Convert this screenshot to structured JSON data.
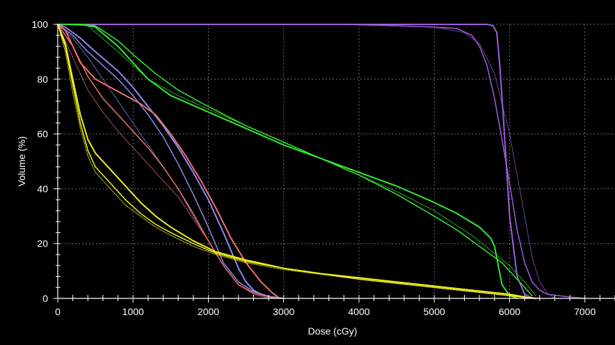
{
  "chart_data": {
    "type": "line",
    "title": "",
    "xlabel": "Dose (cGy)",
    "ylabel": "Volume (%)",
    "xlim": [
      0,
      7400
    ],
    "ylim": [
      0,
      100
    ],
    "xticks": [
      0,
      1000,
      2000,
      3000,
      4000,
      5000,
      6000,
      7000
    ],
    "yticks": [
      0,
      20,
      40,
      60,
      80,
      100
    ],
    "grid": true,
    "legend": "none",
    "background_color": "#000000",
    "series": [
      {
        "color": "#a05ee0",
        "style": "solid",
        "x": [
          0,
          3000,
          5700,
          5780,
          5830,
          5870,
          5920,
          6000,
          6100,
          6200,
          6300,
          6400
        ],
        "y": [
          100,
          100,
          100,
          99.5,
          97,
          85,
          65,
          30,
          8,
          1.5,
          0.2,
          0
        ]
      },
      {
        "color": "#a05ee0",
        "style": "dashed",
        "x": [
          0,
          3800,
          4500,
          5000,
          5300,
          5500,
          5600,
          5700,
          5800,
          5900,
          6000,
          6100,
          6200,
          6300,
          6400,
          6500,
          6800,
          7000
        ],
        "y": [
          100,
          100,
          99.5,
          99,
          98.5,
          96,
          92,
          85,
          73,
          58,
          42,
          25,
          13,
          6,
          3,
          1.5,
          0.5,
          0
        ]
      },
      {
        "color": "#a05ee0",
        "style": "dotted",
        "x": [
          0,
          4000,
          5000,
          5400,
          5600,
          5800,
          6000,
          6200,
          6300,
          6400,
          6500,
          6600
        ],
        "y": [
          100,
          100,
          99,
          97,
          93,
          82,
          60,
          30,
          15,
          6,
          2,
          0
        ]
      },
      {
        "color": "#33e633",
        "style": "solid",
        "x": [
          0,
          300,
          500,
          800,
          1000,
          1200,
          1500,
          2000,
          2500,
          3000,
          3500,
          4000,
          4500,
          5000,
          5300,
          5600,
          5750,
          5800,
          5850,
          5900,
          6000,
          6100
        ],
        "y": [
          100,
          100,
          99,
          92,
          86,
          80,
          74,
          68,
          62,
          56,
          51,
          46,
          41,
          35,
          31,
          26,
          22,
          19,
          12,
          5,
          1,
          0
        ]
      },
      {
        "color": "#33e633",
        "style": "dashed",
        "x": [
          0,
          300,
          500,
          800,
          1000,
          1300,
          1600,
          2000,
          2500,
          3000,
          3500,
          4000,
          4500,
          5000,
          5300,
          5500,
          5700,
          5900,
          6100,
          6300
        ],
        "y": [
          100,
          100,
          99.5,
          94,
          89,
          82,
          76,
          70,
          63,
          57,
          51,
          45,
          38,
          30,
          25,
          21,
          17,
          13,
          7,
          1
        ]
      },
      {
        "color": "#33e633",
        "style": "dotted",
        "x": [
          0,
          400,
          800,
          1200,
          1600,
          2000,
          3000,
          4000,
          4500,
          5000,
          5500,
          6000,
          6200,
          6350
        ],
        "y": [
          100,
          99.5,
          90,
          80,
          74,
          69,
          57,
          45,
          39,
          32,
          23,
          12,
          6,
          1
        ]
      },
      {
        "color": "#8b8bf0",
        "style": "solid",
        "x": [
          0,
          100,
          300,
          500,
          800,
          1000,
          1200,
          1400,
          1600,
          1800,
          2000,
          2200,
          2400,
          2500,
          2600,
          2700,
          2800,
          3000
        ],
        "y": [
          100,
          99,
          95,
          90,
          83,
          77,
          70,
          63,
          55,
          46,
          36,
          24,
          11,
          6,
          3,
          1.5,
          0.6,
          0
        ]
      },
      {
        "color": "#8b8bf0",
        "style": "dashed",
        "x": [
          0,
          200,
          400,
          600,
          800,
          1000,
          1200,
          1400,
          1600,
          1800,
          2000,
          2200,
          2400,
          2600,
          2800,
          3000
        ],
        "y": [
          100,
          96,
          90,
          85,
          80,
          74,
          67,
          59,
          49,
          38,
          26,
          13,
          6,
          2.5,
          0.8,
          0
        ]
      },
      {
        "color": "#8b8bf0",
        "style": "dotted",
        "x": [
          0,
          200,
          400,
          600,
          800,
          1000,
          1200,
          1400,
          1600,
          1800,
          2000,
          2200,
          2400,
          2600,
          2800,
          3000
        ],
        "y": [
          100,
          95,
          88,
          80,
          72,
          64,
          56,
          48,
          40,
          30,
          21,
          12,
          5,
          2,
          0.5,
          0
        ]
      },
      {
        "color": "#f07070",
        "style": "solid",
        "x": [
          0,
          100,
          200,
          300,
          400,
          500,
          700,
          900,
          1100,
          1300,
          1500,
          1700,
          1900,
          2100,
          2300,
          2500,
          2700,
          2850,
          2950
        ],
        "y": [
          100,
          98,
          92,
          86,
          83,
          80,
          77,
          74,
          71,
          67,
          60,
          52,
          43,
          33,
          22,
          13,
          6,
          2,
          0
        ]
      },
      {
        "color": "#f07070",
        "style": "dashed",
        "x": [
          0,
          200,
          400,
          600,
          800,
          1000,
          1200,
          1400,
          1600,
          1800,
          2000,
          2200,
          2400,
          2600,
          2800,
          2900
        ],
        "y": [
          100,
          92,
          81,
          73,
          67,
          61,
          55,
          48,
          40,
          31,
          21,
          12,
          5,
          2,
          0.5,
          0
        ]
      },
      {
        "color": "#f07070",
        "style": "dotted",
        "x": [
          0,
          200,
          400,
          600,
          800,
          1000,
          1200,
          1400,
          1600,
          1800,
          2000,
          2200,
          2400,
          2600,
          2800
        ],
        "y": [
          100,
          88,
          76,
          68,
          61,
          55,
          49,
          43,
          37,
          29,
          21,
          12,
          5,
          1.5,
          0
        ]
      },
      {
        "color": "#f0f020",
        "style": "solid",
        "x": [
          0,
          100,
          200,
          300,
          400,
          500,
          700,
          900,
          1100,
          1300,
          1500,
          1800,
          2100,
          2500,
          3000,
          3500,
          4000,
          4500,
          5000,
          5500,
          6000,
          6200,
          6350
        ],
        "y": [
          100,
          93,
          80,
          67,
          58,
          53,
          47,
          41,
          35,
          30,
          26,
          21,
          17,
          14,
          11,
          9,
          7.5,
          6,
          4.5,
          3,
          1.5,
          0.5,
          0
        ]
      },
      {
        "color": "#f0f020",
        "style": "dashed",
        "x": [
          0,
          100,
          200,
          300,
          400,
          500,
          700,
          900,
          1100,
          1300,
          1500,
          1800,
          2100,
          2500,
          3000,
          3500,
          4000,
          4500,
          5000,
          5500,
          6000,
          6300
        ],
        "y": [
          100,
          92,
          78,
          64,
          54,
          48,
          42,
          36,
          31,
          27,
          24,
          20,
          16.5,
          13.5,
          11,
          9,
          7,
          5.5,
          4,
          2.5,
          1,
          0
        ]
      },
      {
        "color": "#f0f020",
        "style": "dotted",
        "x": [
          0,
          100,
          200,
          300,
          400,
          500,
          700,
          900,
          1100,
          1300,
          1500,
          1800,
          2100,
          2500,
          3000,
          4000,
          5000,
          6000,
          6300
        ],
        "y": [
          100,
          90,
          75,
          62,
          52,
          46,
          40,
          34,
          30,
          26,
          23,
          19,
          16,
          13,
          10.5,
          7,
          4,
          1,
          0
        ]
      }
    ]
  }
}
